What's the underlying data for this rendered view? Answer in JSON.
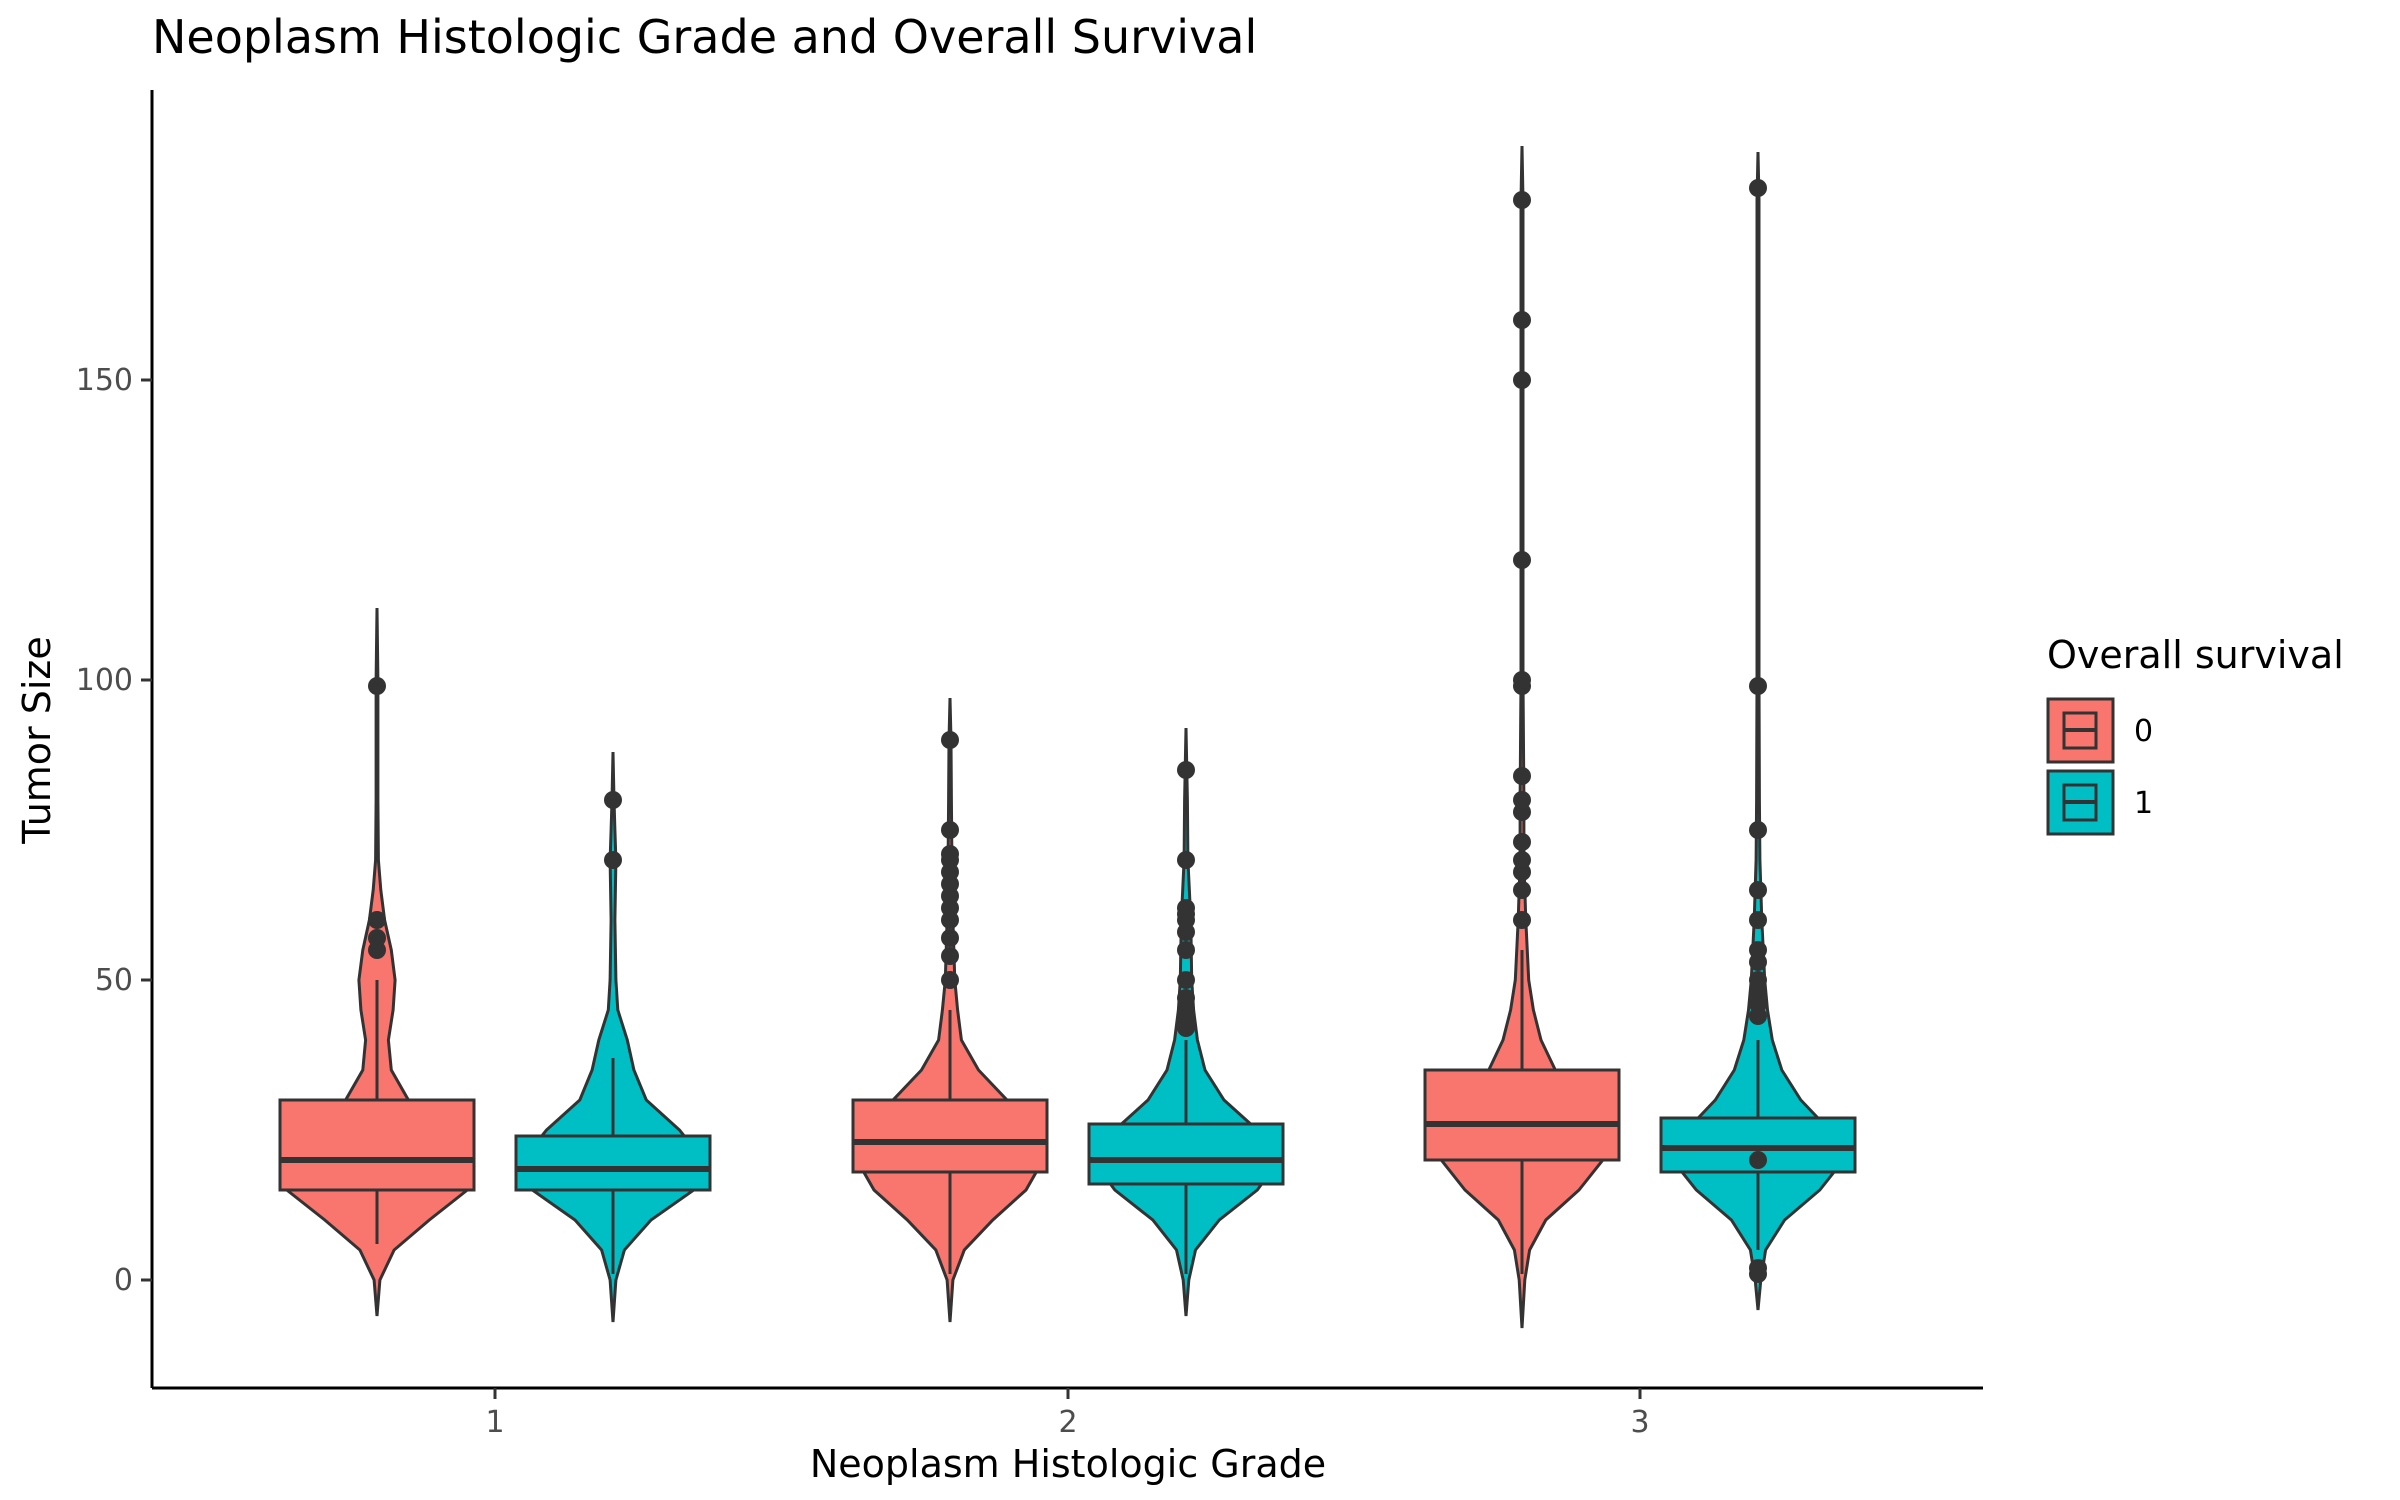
{
  "chart_data": {
    "type": "violin",
    "title": "Neoplasm Histologic Grade and Overall Survival",
    "xlabel": "Neoplasm Histologic Grade",
    "ylabel": "Tumor Size",
    "categories": [
      "1",
      "2",
      "3"
    ],
    "y_ticks": [
      0,
      50,
      100,
      150
    ],
    "ylim": [
      -18,
      197
    ],
    "legend": {
      "title": "Overall survival",
      "position": "right",
      "entries": [
        {
          "label": "0",
          "color": "#F8766D"
        },
        {
          "label": "1",
          "color": "#00BFC4"
        }
      ]
    },
    "grid": false,
    "series": [
      {
        "name": "0",
        "color": "#F8766D",
        "groups": [
          {
            "category": "1",
            "violin_range": [
              -6,
              112
            ],
            "violin_profile": [
              [
                -6,
                0.0
              ],
              [
                0,
                0.03
              ],
              [
                5,
                0.18
              ],
              [
                10,
                0.55
              ],
              [
                15,
                0.95
              ],
              [
                20,
                0.98
              ],
              [
                25,
                0.7
              ],
              [
                30,
                0.33
              ],
              [
                35,
                0.15
              ],
              [
                40,
                0.12
              ],
              [
                45,
                0.17
              ],
              [
                50,
                0.19
              ],
              [
                55,
                0.15
              ],
              [
                60,
                0.08
              ],
              [
                65,
                0.04
              ],
              [
                70,
                0.015
              ],
              [
                80,
                0.01
              ],
              [
                90,
                0.01
              ],
              [
                100,
                0.01
              ],
              [
                112,
                0.0
              ]
            ],
            "box": {
              "q1": 15,
              "median": 20,
              "q3": 30,
              "whisker_low": 6,
              "whisker_high": 50
            },
            "outliers": [
              55,
              57,
              60,
              99
            ]
          },
          {
            "category": "2",
            "violin_range": [
              -7,
              97
            ],
            "violin_profile": [
              [
                -7,
                0.0
              ],
              [
                0,
                0.03
              ],
              [
                5,
                0.15
              ],
              [
                10,
                0.45
              ],
              [
                15,
                0.8
              ],
              [
                20,
                0.98
              ],
              [
                25,
                0.95
              ],
              [
                30,
                0.6
              ],
              [
                35,
                0.3
              ],
              [
                40,
                0.12
              ],
              [
                45,
                0.08
              ],
              [
                50,
                0.05
              ],
              [
                60,
                0.03
              ],
              [
                70,
                0.02
              ],
              [
                80,
                0.015
              ],
              [
                90,
                0.01
              ],
              [
                97,
                0.0
              ]
            ],
            "box": {
              "q1": 18,
              "median": 23,
              "q3": 30,
              "whisker_low": 1,
              "whisker_high": 45
            },
            "outliers": [
              50,
              54,
              57,
              60,
              62,
              64,
              66,
              68,
              70,
              71,
              75,
              90
            ]
          },
          {
            "category": "3",
            "violin_range": [
              -8,
              189
            ],
            "violin_profile": [
              [
                -8,
                0.0
              ],
              [
                0,
                0.03
              ],
              [
                5,
                0.08
              ],
              [
                10,
                0.25
              ],
              [
                15,
                0.6
              ],
              [
                20,
                0.85
              ],
              [
                25,
                0.82
              ],
              [
                30,
                0.6
              ],
              [
                35,
                0.35
              ],
              [
                40,
                0.2
              ],
              [
                45,
                0.12
              ],
              [
                50,
                0.07
              ],
              [
                60,
                0.04
              ],
              [
                70,
                0.02
              ],
              [
                80,
                0.02
              ],
              [
                100,
                0.01
              ],
              [
                120,
                0.01
              ],
              [
                150,
                0.01
              ],
              [
                180,
                0.01
              ],
              [
                189,
                0.0
              ]
            ],
            "box": {
              "q1": 20,
              "median": 26,
              "q3": 35,
              "whisker_low": 1,
              "whisker_high": 55
            },
            "outliers": [
              60,
              65,
              68,
              70,
              73,
              78,
              80,
              84,
              99,
              100,
              120,
              150,
              160,
              180
            ]
          }
        ]
      },
      {
        "name": "1",
        "color": "#00BFC4",
        "groups": [
          {
            "category": "1",
            "violin_range": [
              -7,
              88
            ],
            "violin_profile": [
              [
                -7,
                0.0
              ],
              [
                0,
                0.03
              ],
              [
                5,
                0.12
              ],
              [
                10,
                0.4
              ],
              [
                15,
                0.85
              ],
              [
                20,
                0.95
              ],
              [
                25,
                0.7
              ],
              [
                30,
                0.35
              ],
              [
                35,
                0.22
              ],
              [
                40,
                0.15
              ],
              [
                45,
                0.05
              ],
              [
                50,
                0.03
              ],
              [
                60,
                0.02
              ],
              [
                70,
                0.03
              ],
              [
                75,
                0.02
              ],
              [
                80,
                0.01
              ],
              [
                88,
                0.0
              ]
            ],
            "box": {
              "q1": 15,
              "median": 18.5,
              "q3": 24,
              "whisker_low": 1,
              "whisker_high": 37
            },
            "outliers": [
              70,
              80
            ]
          },
          {
            "category": "2",
            "violin_range": [
              -6,
              92
            ],
            "violin_profile": [
              [
                -6,
                0.0
              ],
              [
                0,
                0.03
              ],
              [
                5,
                0.1
              ],
              [
                10,
                0.35
              ],
              [
                15,
                0.75
              ],
              [
                20,
                0.98
              ],
              [
                25,
                0.75
              ],
              [
                30,
                0.4
              ],
              [
                35,
                0.2
              ],
              [
                40,
                0.12
              ],
              [
                45,
                0.08
              ],
              [
                50,
                0.06
              ],
              [
                60,
                0.05
              ],
              [
                70,
                0.02
              ],
              [
                80,
                0.015
              ],
              [
                92,
                0.0
              ]
            ],
            "box": {
              "q1": 16,
              "median": 20,
              "q3": 26,
              "whisker_low": 1,
              "whisker_high": 40
            },
            "outliers": [
              42,
              43,
              45,
              47,
              50,
              55,
              58,
              60,
              61,
              62,
              70,
              85
            ]
          },
          {
            "category": "3",
            "violin_range": [
              -5,
              188
            ],
            "violin_profile": [
              [
                -5,
                0.0
              ],
              [
                0,
                0.03
              ],
              [
                5,
                0.08
              ],
              [
                10,
                0.28
              ],
              [
                15,
                0.65
              ],
              [
                20,
                0.9
              ],
              [
                25,
                0.75
              ],
              [
                30,
                0.45
              ],
              [
                35,
                0.25
              ],
              [
                40,
                0.15
              ],
              [
                45,
                0.1
              ],
              [
                50,
                0.07
              ],
              [
                60,
                0.04
              ],
              [
                70,
                0.02
              ],
              [
                80,
                0.015
              ],
              [
                100,
                0.01
              ],
              [
                150,
                0.01
              ],
              [
                180,
                0.01
              ],
              [
                188,
                0.0
              ]
            ],
            "box": {
              "q1": 18,
              "median": 22,
              "q3": 27,
              "whisker_low": 5,
              "whisker_high": 40
            },
            "outliers": [
              1,
              2,
              20,
              44,
              46,
              48,
              50,
              53,
              55,
              60,
              65,
              75,
              99,
              182
            ]
          }
        ]
      }
    ]
  }
}
